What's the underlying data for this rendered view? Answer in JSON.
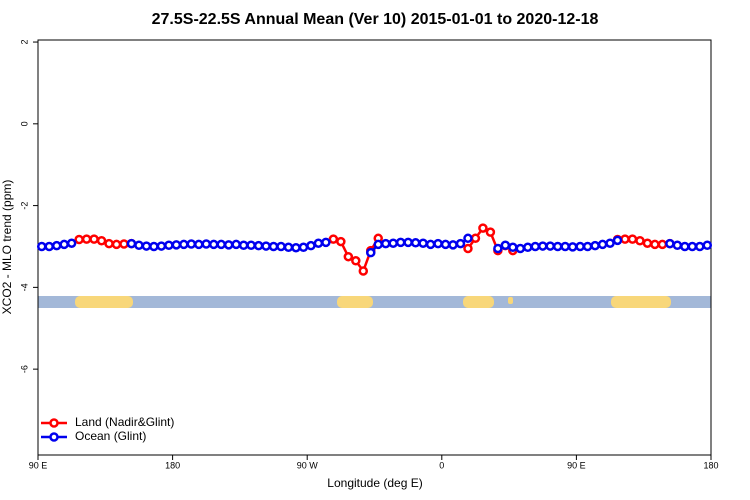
{
  "chart_data": {
    "type": "line",
    "title": "27.5S-22.5S Annual Mean (Ver 10)   2015-01-01 to 2020-12-18",
    "x_label": "Longitude (deg E)",
    "y_label": "XCO2 - MLO trend (ppm)",
    "x": [
      92.5,
      97.5,
      102.5,
      107.5,
      112.5,
      117.5,
      122.5,
      127.5,
      132.5,
      137.5,
      142.5,
      147.5,
      152.5,
      157.5,
      162.5,
      167.5,
      172.5,
      177.5,
      182.5,
      187.5,
      192.5,
      197.5,
      202.5,
      207.5,
      212.5,
      217.5,
      222.5,
      227.5,
      232.5,
      237.5,
      242.5,
      247.5,
      252.5,
      257.5,
      262.5,
      267.5,
      272.5,
      277.5,
      282.5,
      287.5,
      292.5,
      297.5,
      302.5,
      307.5,
      312.5,
      317.5,
      322.5,
      327.5,
      332.5,
      337.5,
      342.5,
      347.5,
      352.5,
      357.5,
      362.5,
      367.5,
      372.5,
      377.5,
      382.5,
      387.5,
      392.5,
      397.5,
      402.5,
      407.5,
      412.5,
      417.5,
      422.5,
      427.5,
      432.5,
      437.5,
      442.5,
      447.5,
      452.5,
      457.5,
      462.5,
      467.5,
      472.5,
      477.5,
      482.5,
      487.5,
      492.5,
      497.5,
      502.5,
      507.5,
      512.5,
      517.5,
      522.5,
      527.5,
      532.5,
      537.5
    ],
    "series": [
      {
        "name": "Land (Nadir&Glint)",
        "color": "#ff0000",
        "values": [
          null,
          null,
          null,
          null,
          null,
          -2.83,
          -2.82,
          -2.82,
          -2.86,
          -2.93,
          -2.95,
          -2.94,
          -2.93,
          null,
          null,
          null,
          null,
          null,
          null,
          null,
          null,
          null,
          null,
          null,
          null,
          null,
          null,
          null,
          null,
          null,
          null,
          null,
          null,
          null,
          null,
          null,
          null,
          null,
          null,
          -2.82,
          -2.88,
          -3.25,
          -3.35,
          -3.6,
          -3.1,
          -2.8,
          null,
          null,
          null,
          null,
          null,
          null,
          null,
          null,
          null,
          null,
          null,
          -3.05,
          -2.8,
          -2.55,
          -2.65,
          -3.1,
          -2.98,
          -3.1,
          null,
          null,
          null,
          null,
          null,
          null,
          null,
          null,
          null,
          null,
          null,
          null,
          null,
          -2.83,
          -2.82,
          -2.82,
          -2.86,
          -2.92,
          -2.95,
          -2.95,
          -2.93,
          null,
          null,
          null,
          null,
          null
        ]
      },
      {
        "name": "Ocean (Glint)",
        "color": "#0000ee",
        "values": [
          -3.0,
          -3.0,
          -2.98,
          -2.95,
          -2.92,
          null,
          null,
          null,
          null,
          null,
          null,
          null,
          -2.93,
          -2.97,
          -2.99,
          -3.0,
          -2.99,
          -2.97,
          -2.96,
          -2.95,
          -2.94,
          -2.95,
          -2.94,
          -2.95,
          -2.95,
          -2.96,
          -2.95,
          -2.97,
          -2.97,
          -2.98,
          -2.99,
          -3.0,
          -3.0,
          -3.02,
          -3.03,
          -3.02,
          -2.98,
          -2.92,
          -2.9,
          null,
          null,
          null,
          null,
          null,
          -3.15,
          -2.95,
          -2.93,
          -2.92,
          -2.9,
          -2.9,
          -2.91,
          -2.92,
          -2.95,
          -2.93,
          -2.95,
          -2.96,
          -2.93,
          -2.8,
          null,
          null,
          null,
          -3.05,
          -2.97,
          -3.02,
          -3.05,
          -3.02,
          -3.0,
          -2.99,
          -2.99,
          -3.0,
          -3.0,
          -3.01,
          -3.0,
          -3.0,
          -2.98,
          -2.95,
          -2.92,
          -2.85,
          null,
          null,
          null,
          null,
          null,
          null,
          -2.93,
          -2.97,
          -3.0,
          -3.0,
          -3.0,
          -2.97
        ]
      }
    ],
    "xlim": [
      90,
      540
    ],
    "ylim": [
      -8.1,
      2.05
    ],
    "xticks": [
      {
        "value": 90,
        "label": "90 E"
      },
      180,
      {
        "value": 270,
        "label": "90 W"
      },
      {
        "value": 360,
        "label": "0"
      },
      {
        "value": 450,
        "label": "90 E"
      },
      {
        "value": 540,
        "label": "180"
      }
    ],
    "yticks": [
      2,
      0,
      -2,
      -4,
      -6
    ],
    "legend": "bottomleft"
  }
}
